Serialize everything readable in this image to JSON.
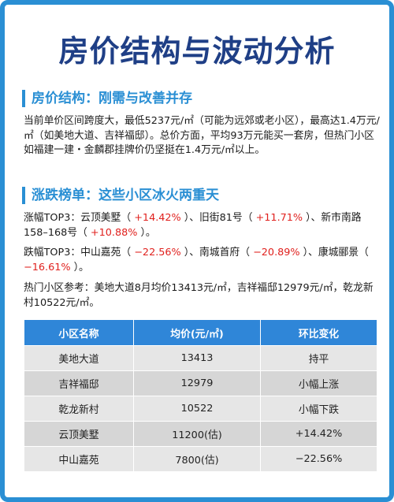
{
  "title": "房价结构与波动分析",
  "section1": {
    "heading": "房价结构：刚需与改善并存",
    "body": "当前单价区间跨度大，最低5237元/㎡（可能为远郊或老小区），最高达1.4万元/㎡（如美地大道、吉祥福邸）。总价方面，平均93万元能买一套房，但热门小区如福建一建・金麟郡挂牌价仍坚挺在1.4万元/㎡以上。"
  },
  "section2": {
    "heading": "涨跌榜单：这些小区冰火两重天",
    "rise": {
      "label": "涨幅TOP3：",
      "items": [
        {
          "name": "云顶美墅",
          "value": "+14.42%"
        },
        {
          "name": "旧街81号",
          "value": "+11.71%"
        },
        {
          "name": "新市南路158–168号",
          "value": "+10.88%"
        }
      ]
    },
    "fall": {
      "label": "跌幅TOP3：",
      "items": [
        {
          "name": "中山嘉苑",
          "value": "−22.56%"
        },
        {
          "name": "南城首府",
          "value": "−20.89%"
        },
        {
          "name": "康城郦景",
          "value": "−16.61%"
        }
      ]
    },
    "hot": "热门小区参考：美地大道8月均价13413元/㎡，吉祥福邸12979元/㎡，乾龙新村10522元/㎡。"
  },
  "table": {
    "headers": [
      "小区名称",
      "均价(元/㎡)",
      "环比变化"
    ],
    "rows": [
      {
        "name": "美地大道",
        "price": "13413",
        "change": "持平",
        "highlight": false
      },
      {
        "name": "吉祥福邸",
        "price": "12979",
        "change": "小幅上涨",
        "highlight": false
      },
      {
        "name": "乾龙新村",
        "price": "10522",
        "change": "小幅下跌",
        "highlight": false
      },
      {
        "name": "云顶美墅",
        "price": "11200(估)",
        "change": "+14.42%",
        "highlight": true
      },
      {
        "name": "中山嘉苑",
        "price": "7800(估)",
        "change": "−22.56%",
        "highlight": true
      }
    ]
  },
  "colors": {
    "accent": "#2a8fd4",
    "title": "#1f3f86",
    "up_down": "#e0201d"
  }
}
